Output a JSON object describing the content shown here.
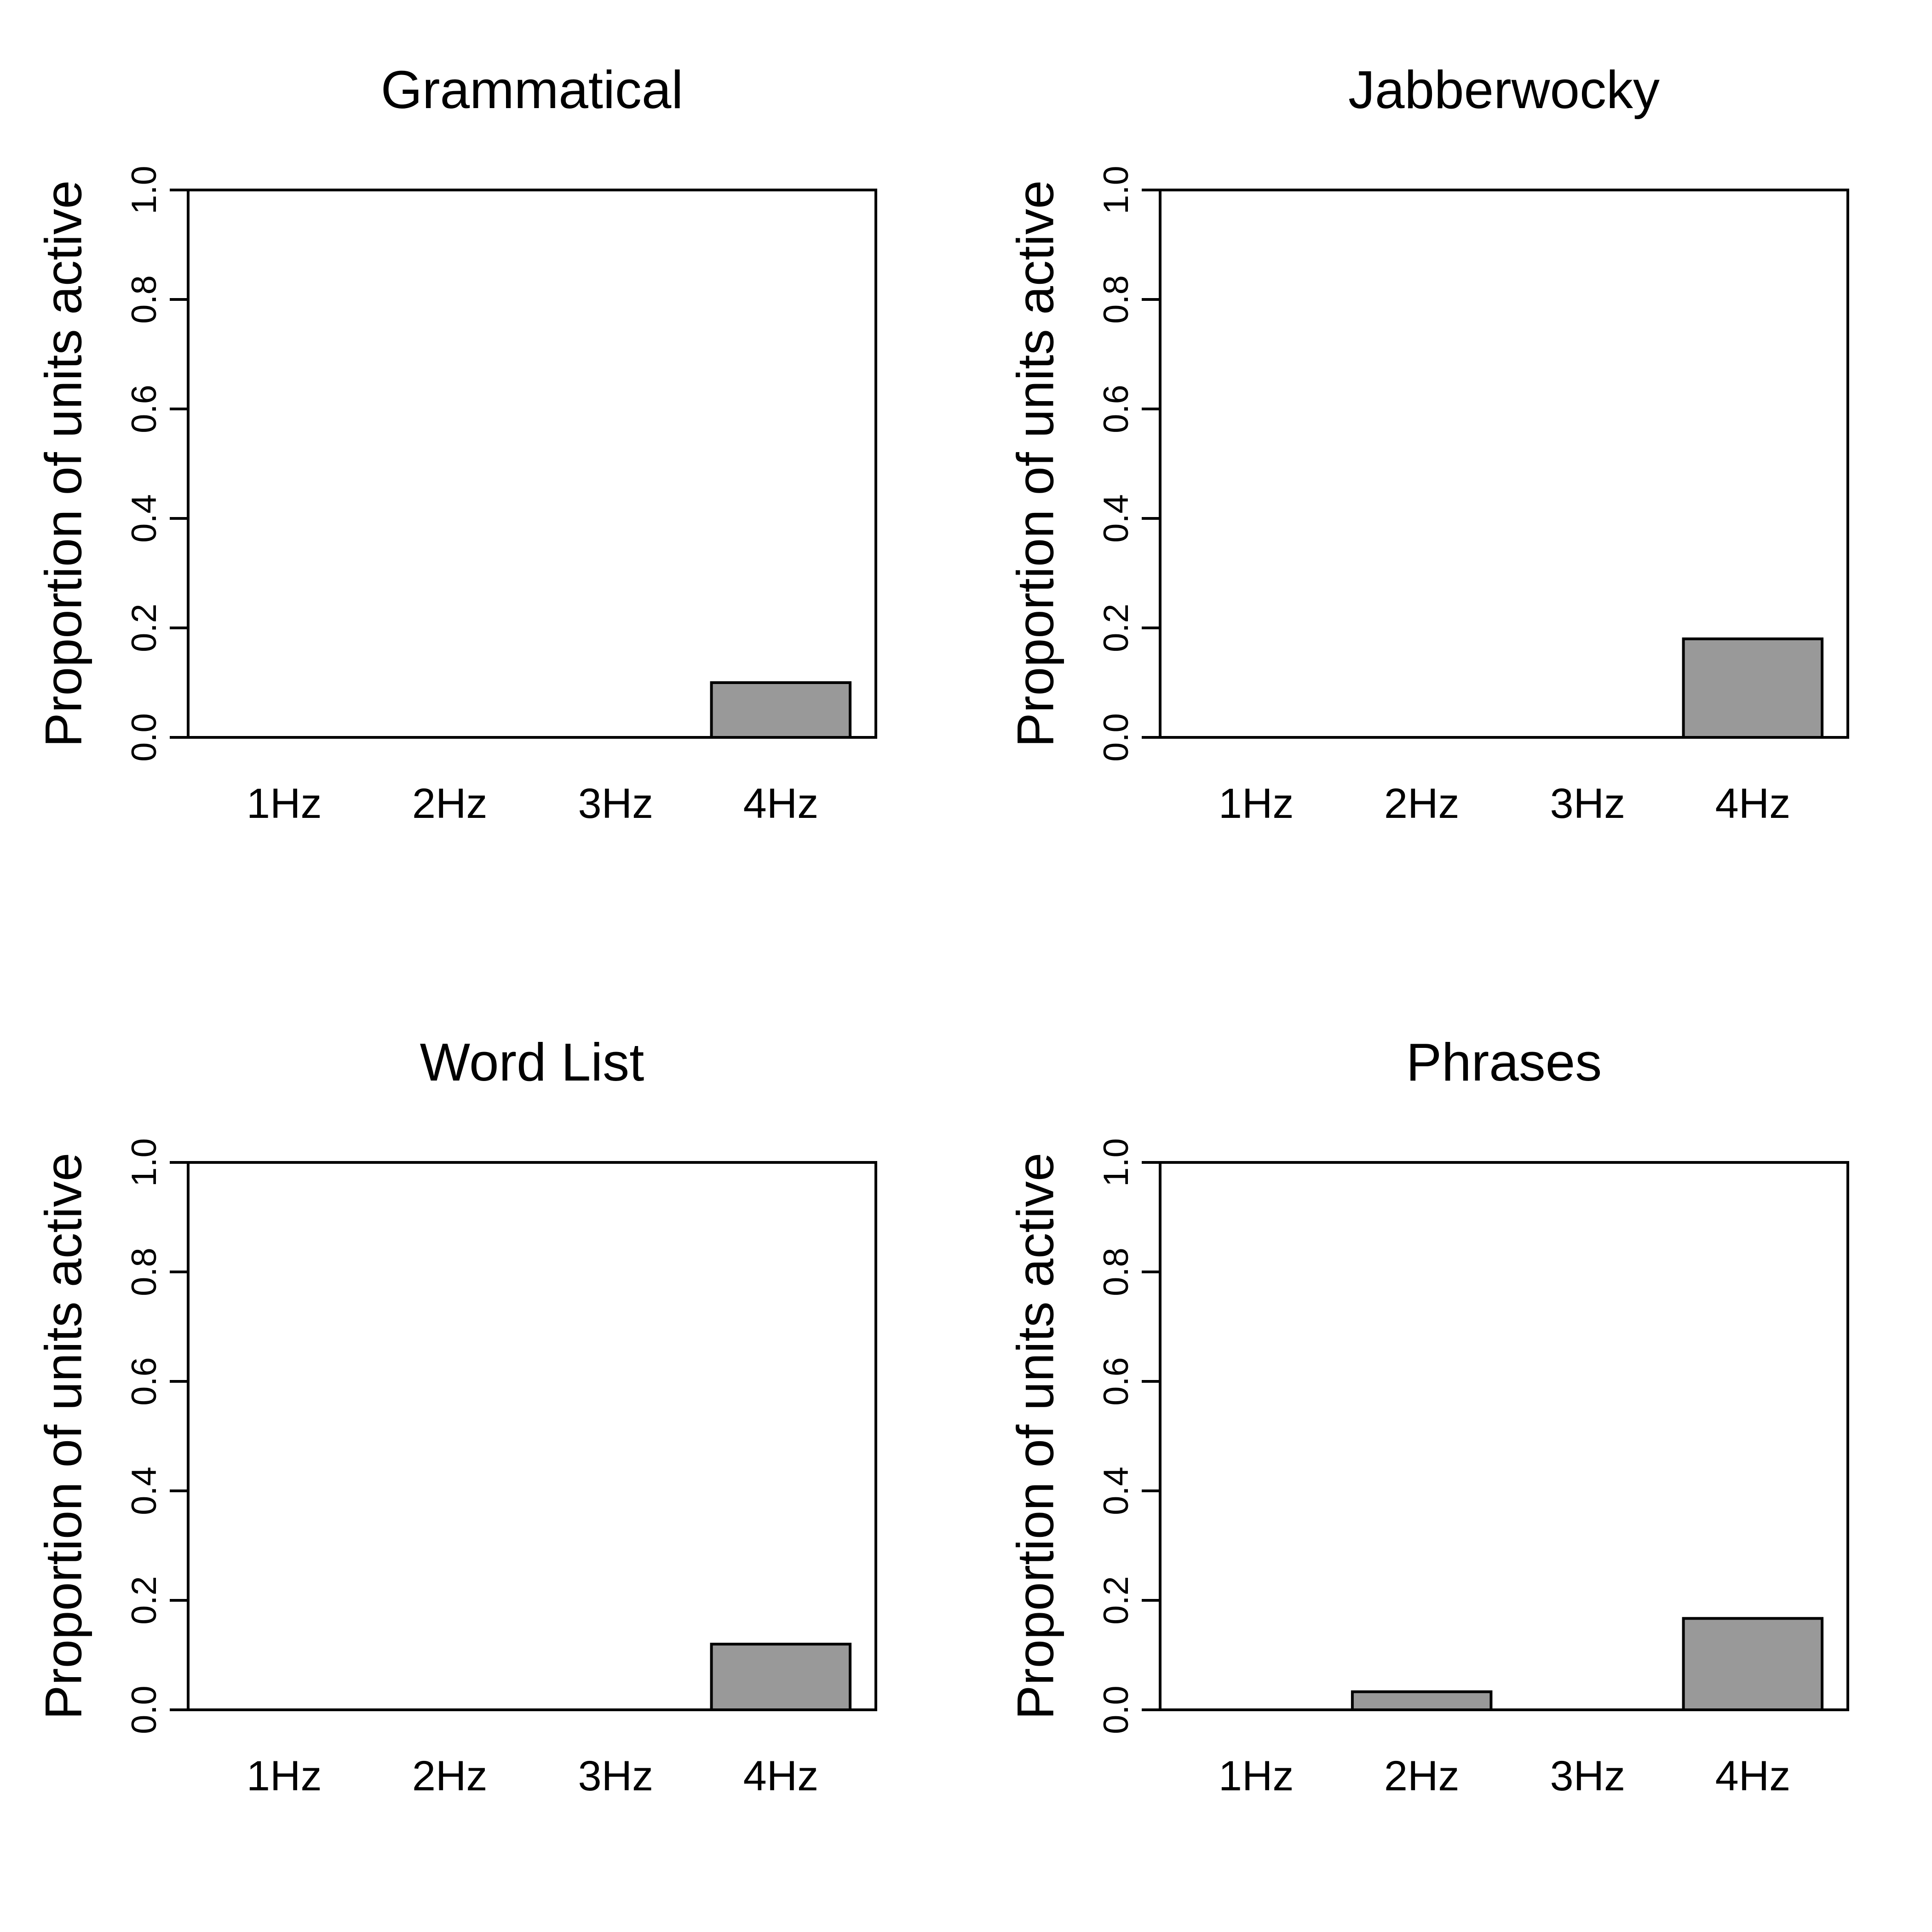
{
  "chart_data": [
    {
      "type": "bar",
      "title": "Grammatical",
      "xlabel": "",
      "ylabel": "Proportion of units active",
      "categories": [
        "1Hz",
        "2Hz",
        "3Hz",
        "4Hz"
      ],
      "values": [
        0,
        0,
        0,
        0.1
      ],
      "ylim": [
        0,
        1
      ],
      "yticks": [
        "0.0",
        "0.2",
        "0.4",
        "0.6",
        "0.8",
        "1.0"
      ],
      "grid": false,
      "bar_color": "#999999"
    },
    {
      "type": "bar",
      "title": "Jabberwocky",
      "xlabel": "",
      "ylabel": "Proportion of units active",
      "categories": [
        "1Hz",
        "2Hz",
        "3Hz",
        "4Hz"
      ],
      "values": [
        0,
        0,
        0,
        0.18
      ],
      "ylim": [
        0,
        1
      ],
      "yticks": [
        "0.0",
        "0.2",
        "0.4",
        "0.6",
        "0.8",
        "1.0"
      ],
      "grid": false,
      "bar_color": "#999999"
    },
    {
      "type": "bar",
      "title": "Word List",
      "xlabel": "",
      "ylabel": "Proportion of units active",
      "categories": [
        "1Hz",
        "2Hz",
        "3Hz",
        "4Hz"
      ],
      "values": [
        0,
        0,
        0,
        0.12
      ],
      "ylim": [
        0,
        1
      ],
      "yticks": [
        "0.0",
        "0.2",
        "0.4",
        "0.6",
        "0.8",
        "1.0"
      ],
      "grid": false,
      "bar_color": "#999999"
    },
    {
      "type": "bar",
      "title": "Phrases",
      "xlabel": "",
      "ylabel": "Proportion of units active",
      "categories": [
        "1Hz",
        "2Hz",
        "3Hz",
        "4Hz"
      ],
      "values": [
        0,
        0.033,
        0,
        0.167
      ],
      "ylim": [
        0,
        1
      ],
      "yticks": [
        "0.0",
        "0.2",
        "0.4",
        "0.6",
        "0.8",
        "1.0"
      ],
      "grid": false,
      "bar_color": "#999999"
    }
  ]
}
